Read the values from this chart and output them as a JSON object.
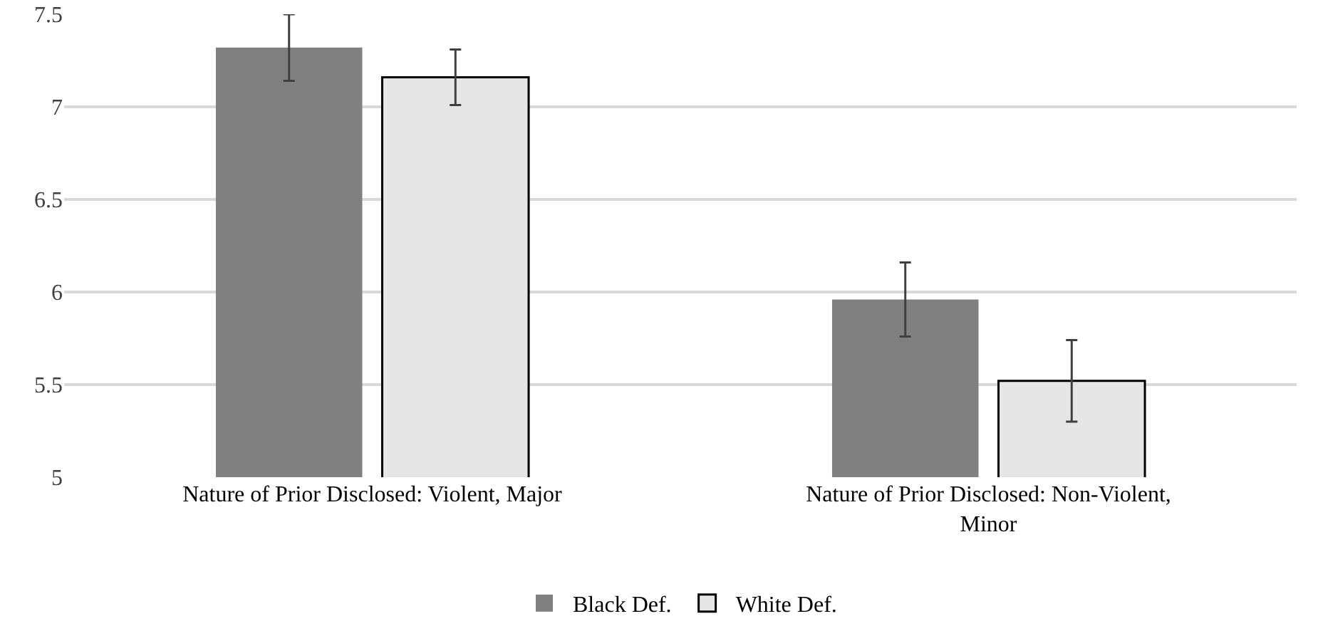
{
  "chart_data": {
    "type": "bar",
    "categories": [
      "Nature of Prior Disclosed: Violent, Major",
      "Nature of Prior Disclosed: Non-Violent, Minor"
    ],
    "series": [
      {
        "name": "Black Def.",
        "color": "#808080",
        "values": [
          7.32,
          5.96
        ],
        "errors": [
          0.18,
          0.2
        ]
      },
      {
        "name": "White Def.",
        "color": "#e6e6e6",
        "values": [
          7.16,
          5.52
        ],
        "errors": [
          0.15,
          0.22
        ]
      }
    ],
    "ylim": [
      5,
      7.5
    ],
    "yticks": [
      5,
      5.5,
      6,
      6.5,
      7,
      7.5
    ],
    "grid": "y",
    "legend": "bottom"
  }
}
